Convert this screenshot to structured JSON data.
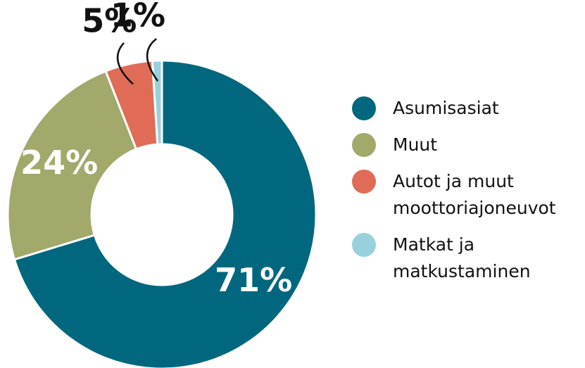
{
  "chart_data": {
    "type": "donut",
    "categories": [
      "Asumisasiat",
      "Muut",
      "Autot ja muut moottoriajoneuvot",
      "Matkat ja matkustaminen"
    ],
    "values": [
      71,
      24,
      5,
      1
    ],
    "value_labels": [
      "71%",
      "24%",
      "5%",
      "1%"
    ],
    "colors": [
      "#00677f",
      "#a3a86b",
      "#e06c57",
      "#98d1db"
    ],
    "legend": "right"
  }
}
